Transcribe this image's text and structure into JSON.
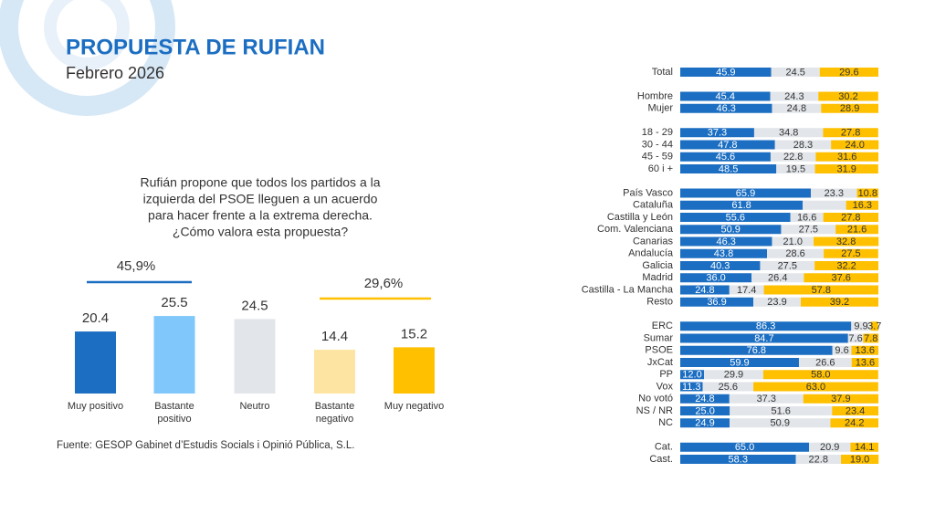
{
  "header": {
    "title": "PROPUESTA DE RUFIAN",
    "subtitle": "Febrero 2026"
  },
  "question": [
    "Rufián propone que todos los partidos a la",
    "izquierda del PSOE lleguen a un acuerdo",
    "para hacer frente a la extrema derecha.",
    "¿Cómo valora esta propuesta?"
  ],
  "source": "Fuente: GESOP Gabinet d’Estudis Socials i Opinió Pública, S.L.",
  "chart_data": [
    {
      "type": "bar",
      "categories": [
        "Muy positivo",
        "Bastante positivo",
        "Neutro",
        "Bastante negativo",
        "Muy negativo"
      ],
      "values": [
        20.4,
        25.5,
        24.5,
        14.4,
        15.2
      ],
      "colors": [
        "#1b6ec2",
        "#80c8fb",
        "#e2e5e9",
        "#fde4a2",
        "#ffc000"
      ],
      "annotations": [
        {
          "label": "45,9%",
          "color": "#1b6ec2"
        },
        {
          "label": "29,6%",
          "color": "#ffc000"
        }
      ]
    },
    {
      "type": "stacked-bar-h",
      "series_colors": [
        "#1b6ec2",
        "#e2e5e9",
        "#ffc000"
      ],
      "groups": [
        {
          "categories": [
            "Total"
          ],
          "series": [
            {
              "values": [
                45.9
              ],
              "value_labels": [
                "45.9"
              ]
            },
            {
              "values": [
                24.5
              ],
              "value_labels": [
                "24.5"
              ]
            },
            {
              "values": [
                29.6
              ],
              "value_labels": [
                "29.6"
              ]
            }
          ]
        },
        {
          "categories": [
            "Hombre",
            "Mujer"
          ],
          "series": [
            {
              "values": [
                45.4,
                46.3
              ],
              "value_labels": [
                "45.4",
                "46.3"
              ]
            },
            {
              "values": [
                24.3,
                24.8
              ],
              "value_labels": [
                "24.3",
                "24.8"
              ]
            },
            {
              "values": [
                30.2,
                28.9
              ],
              "value_labels": [
                "30.2",
                "28.9"
              ]
            }
          ]
        },
        {
          "categories": [
            "18 - 29",
            "30 - 44",
            "45 - 59",
            "60 i +"
          ],
          "series": [
            {
              "values": [
                37.3,
                47.8,
                45.6,
                48.5
              ],
              "value_labels": [
                "37.3",
                "47.8",
                "45.6",
                "48.5"
              ]
            },
            {
              "values": [
                34.8,
                28.3,
                22.8,
                19.5
              ],
              "value_labels": [
                "34.8",
                "28.3",
                "22.8",
                "19.5"
              ]
            },
            {
              "values": [
                27.8,
                24.0,
                31.6,
                31.9
              ],
              "value_labels": [
                "27.8",
                "24.0",
                "31.6",
                "31.9"
              ]
            }
          ]
        },
        {
          "categories": [
            "País Vasco",
            "Cataluña",
            "Castilla y León",
            "Com. Valenciana",
            "Canarias",
            "Andalucía",
            "Galicia",
            "Madrid",
            "Castilla - La Mancha",
            "Resto"
          ],
          "series": [
            {
              "values": [
                65.9,
                61.8,
                55.6,
                50.9,
                46.3,
                43.8,
                40.3,
                36.0,
                24.8,
                36.9
              ],
              "value_labels": [
                "65.9",
                "61.8",
                "55.6",
                "50.9",
                "46.3",
                "43.8",
                "40.3",
                "36.0",
                "24.8",
                "36.9"
              ]
            },
            {
              "values": [
                23.3,
                21.9,
                16.6,
                27.5,
                21.0,
                28.6,
                27.5,
                26.4,
                17.4,
                23.9
              ],
              "value_labels": [
                "23.3",
                null,
                "16.6",
                "27.5",
                "21.0",
                "28.6",
                "27.5",
                "26.4",
                "17.4",
                "23.9"
              ]
            },
            {
              "values": [
                10.8,
                16.3,
                27.8,
                21.6,
                32.8,
                27.5,
                32.2,
                37.6,
                57.8,
                39.2
              ],
              "value_labels": [
                "10.8",
                "16.3",
                "27.8",
                "21.6",
                "32.8",
                "27.5",
                "32.2",
                "37.6",
                "57.8",
                "39.2"
              ]
            }
          ]
        },
        {
          "categories": [
            "ERC",
            "Sumar",
            "PSOE",
            "JxCat",
            "PP",
            "Vox",
            "No votó",
            "NS / NR",
            "NC"
          ],
          "series": [
            {
              "values": [
                86.3,
                84.7,
                76.8,
                59.9,
                12.0,
                11.3,
                24.8,
                25.0,
                24.9
              ],
              "value_labels": [
                "86.3",
                "84.7",
                "76.8",
                "59.9",
                "12.0",
                "11.3",
                "24.8",
                "25.0",
                "24.9"
              ]
            },
            {
              "values": [
                9.9,
                7.6,
                9.6,
                26.6,
                29.9,
                25.6,
                37.3,
                51.6,
                50.9
              ],
              "value_labels": [
                "9.9",
                "7.6",
                "9.6",
                "26.6",
                "29.9",
                "25.6",
                "37.3",
                "51.6",
                "50.9"
              ]
            },
            {
              "values": [
                3.7,
                7.8,
                13.6,
                13.6,
                58.0,
                63.0,
                37.9,
                23.4,
                24.2
              ],
              "value_labels": [
                "3.7",
                "7.8",
                "13.6",
                "13.6",
                "58.0",
                "63.0",
                "37.9",
                "23.4",
                "24.2"
              ]
            }
          ]
        },
        {
          "categories": [
            "Cat.",
            "Cast."
          ],
          "series": [
            {
              "values": [
                65.0,
                58.3
              ],
              "value_labels": [
                "65.0",
                "58.3"
              ]
            },
            {
              "values": [
                20.9,
                22.8
              ],
              "value_labels": [
                "20.9",
                "22.8"
              ]
            },
            {
              "values": [
                14.1,
                19.0
              ],
              "value_labels": [
                "14.1",
                "19.0"
              ]
            }
          ]
        }
      ]
    }
  ]
}
